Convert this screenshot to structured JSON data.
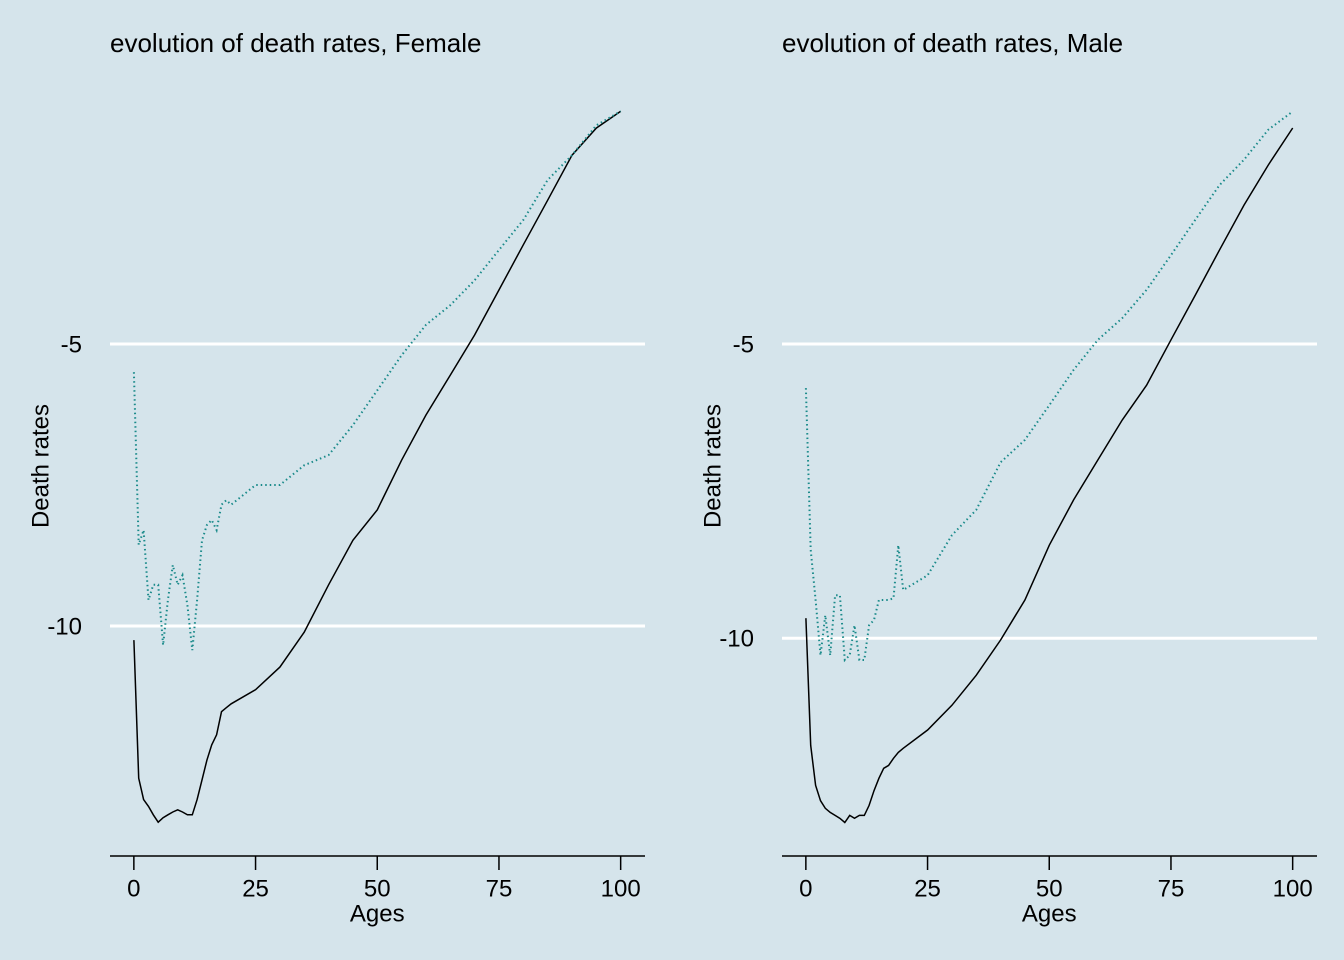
{
  "chart_data": [
    {
      "type": "line",
      "title": "evolution of death rates, Female",
      "xlabel": "Ages",
      "ylabel": "Death rates",
      "x": [
        0,
        1,
        2,
        3,
        4,
        5,
        6,
        7,
        8,
        9,
        10,
        11,
        12,
        13,
        14,
        15,
        16,
        17,
        18,
        19,
        20,
        25,
        30,
        35,
        40,
        45,
        50,
        55,
        60,
        65,
        70,
        75,
        80,
        85,
        90,
        95,
        100
      ],
      "series": [
        {
          "color": "#000000",
          "style": "solid",
          "values": [
            -10.25,
            -12.7,
            -13.08,
            -13.2,
            -13.35,
            -13.48,
            -13.4,
            -13.35,
            -13.3,
            -13.26,
            -13.3,
            -13.35,
            -13.35,
            -13.08,
            -12.73,
            -12.38,
            -12.11,
            -11.93,
            -11.52,
            -11.45,
            -11.38,
            -11.13,
            -10.73,
            -10.11,
            -9.27,
            -8.48,
            -7.94,
            -7.06,
            -6.26,
            -5.55,
            -4.84,
            -4.04,
            -3.24,
            -2.45,
            -1.65,
            -1.17,
            -0.87
          ]
        },
        {
          "color": "#1a8a8a",
          "style": "dotted",
          "values": [
            -5.5,
            -8.56,
            -8.3,
            -9.54,
            -9.27,
            -9.27,
            -10.34,
            -9.54,
            -8.92,
            -9.27,
            -9.1,
            -9.63,
            -10.43,
            -9.54,
            -8.48,
            -8.21,
            -8.12,
            -8.3,
            -7.85,
            -7.77,
            -7.85,
            -7.5,
            -7.5,
            -7.15,
            -6.97,
            -6.44,
            -5.82,
            -5.2,
            -4.66,
            -4.31,
            -3.87,
            -3.33,
            -2.8,
            -2.09,
            -1.65,
            -1.12,
            -0.87
          ]
        }
      ],
      "xlim": [
        -4.9,
        105
      ],
      "ylim": [
        -14.08,
        -0.76
      ],
      "xticks": [
        0,
        25,
        50,
        75,
        100
      ],
      "yticks": [
        -10,
        -5
      ],
      "grid": true
    },
    {
      "type": "line",
      "title": "evolution of death rates, Male",
      "xlabel": "Ages",
      "ylabel": "Death rates",
      "x": [
        0,
        1,
        2,
        3,
        4,
        5,
        6,
        7,
        8,
        9,
        10,
        11,
        12,
        13,
        14,
        15,
        16,
        17,
        18,
        19,
        20,
        25,
        30,
        35,
        40,
        45,
        50,
        55,
        60,
        65,
        70,
        75,
        80,
        85,
        90,
        95,
        100
      ],
      "series": [
        {
          "color": "#000000",
          "style": "solid",
          "values": [
            -9.66,
            -11.82,
            -12.5,
            -12.76,
            -12.89,
            -12.96,
            -13.01,
            -13.06,
            -13.13,
            -13.01,
            -13.06,
            -13.01,
            -13.01,
            -12.84,
            -12.59,
            -12.38,
            -12.21,
            -12.16,
            -12.04,
            -11.94,
            -11.87,
            -11.56,
            -11.14,
            -10.63,
            -10.03,
            -9.35,
            -8.42,
            -7.65,
            -6.97,
            -6.29,
            -5.7,
            -4.93,
            -4.17,
            -3.4,
            -2.64,
            -1.96,
            -1.33
          ]
        },
        {
          "color": "#1a8a8a",
          "style": "dotted",
          "values": [
            -5.75,
            -8.5,
            -9.35,
            -10.29,
            -9.61,
            -10.29,
            -9.27,
            -9.27,
            -10.37,
            -10.29,
            -9.78,
            -10.37,
            -10.37,
            -9.78,
            -9.69,
            -9.35,
            -9.35,
            -9.35,
            -9.32,
            -8.42,
            -9.18,
            -8.93,
            -8.25,
            -7.82,
            -7.01,
            -6.63,
            -6.04,
            -5.44,
            -4.93,
            -4.56,
            -4.08,
            -3.49,
            -2.89,
            -2.3,
            -1.87,
            -1.36,
            -1.05
          ]
        }
      ],
      "xlim": [
        -4.9,
        105
      ],
      "ylim": [
        -13.7,
        -0.94
      ],
      "xticks": [
        0,
        25,
        50,
        75,
        100
      ],
      "yticks": [
        -10,
        -5
      ],
      "grid": true
    }
  ]
}
